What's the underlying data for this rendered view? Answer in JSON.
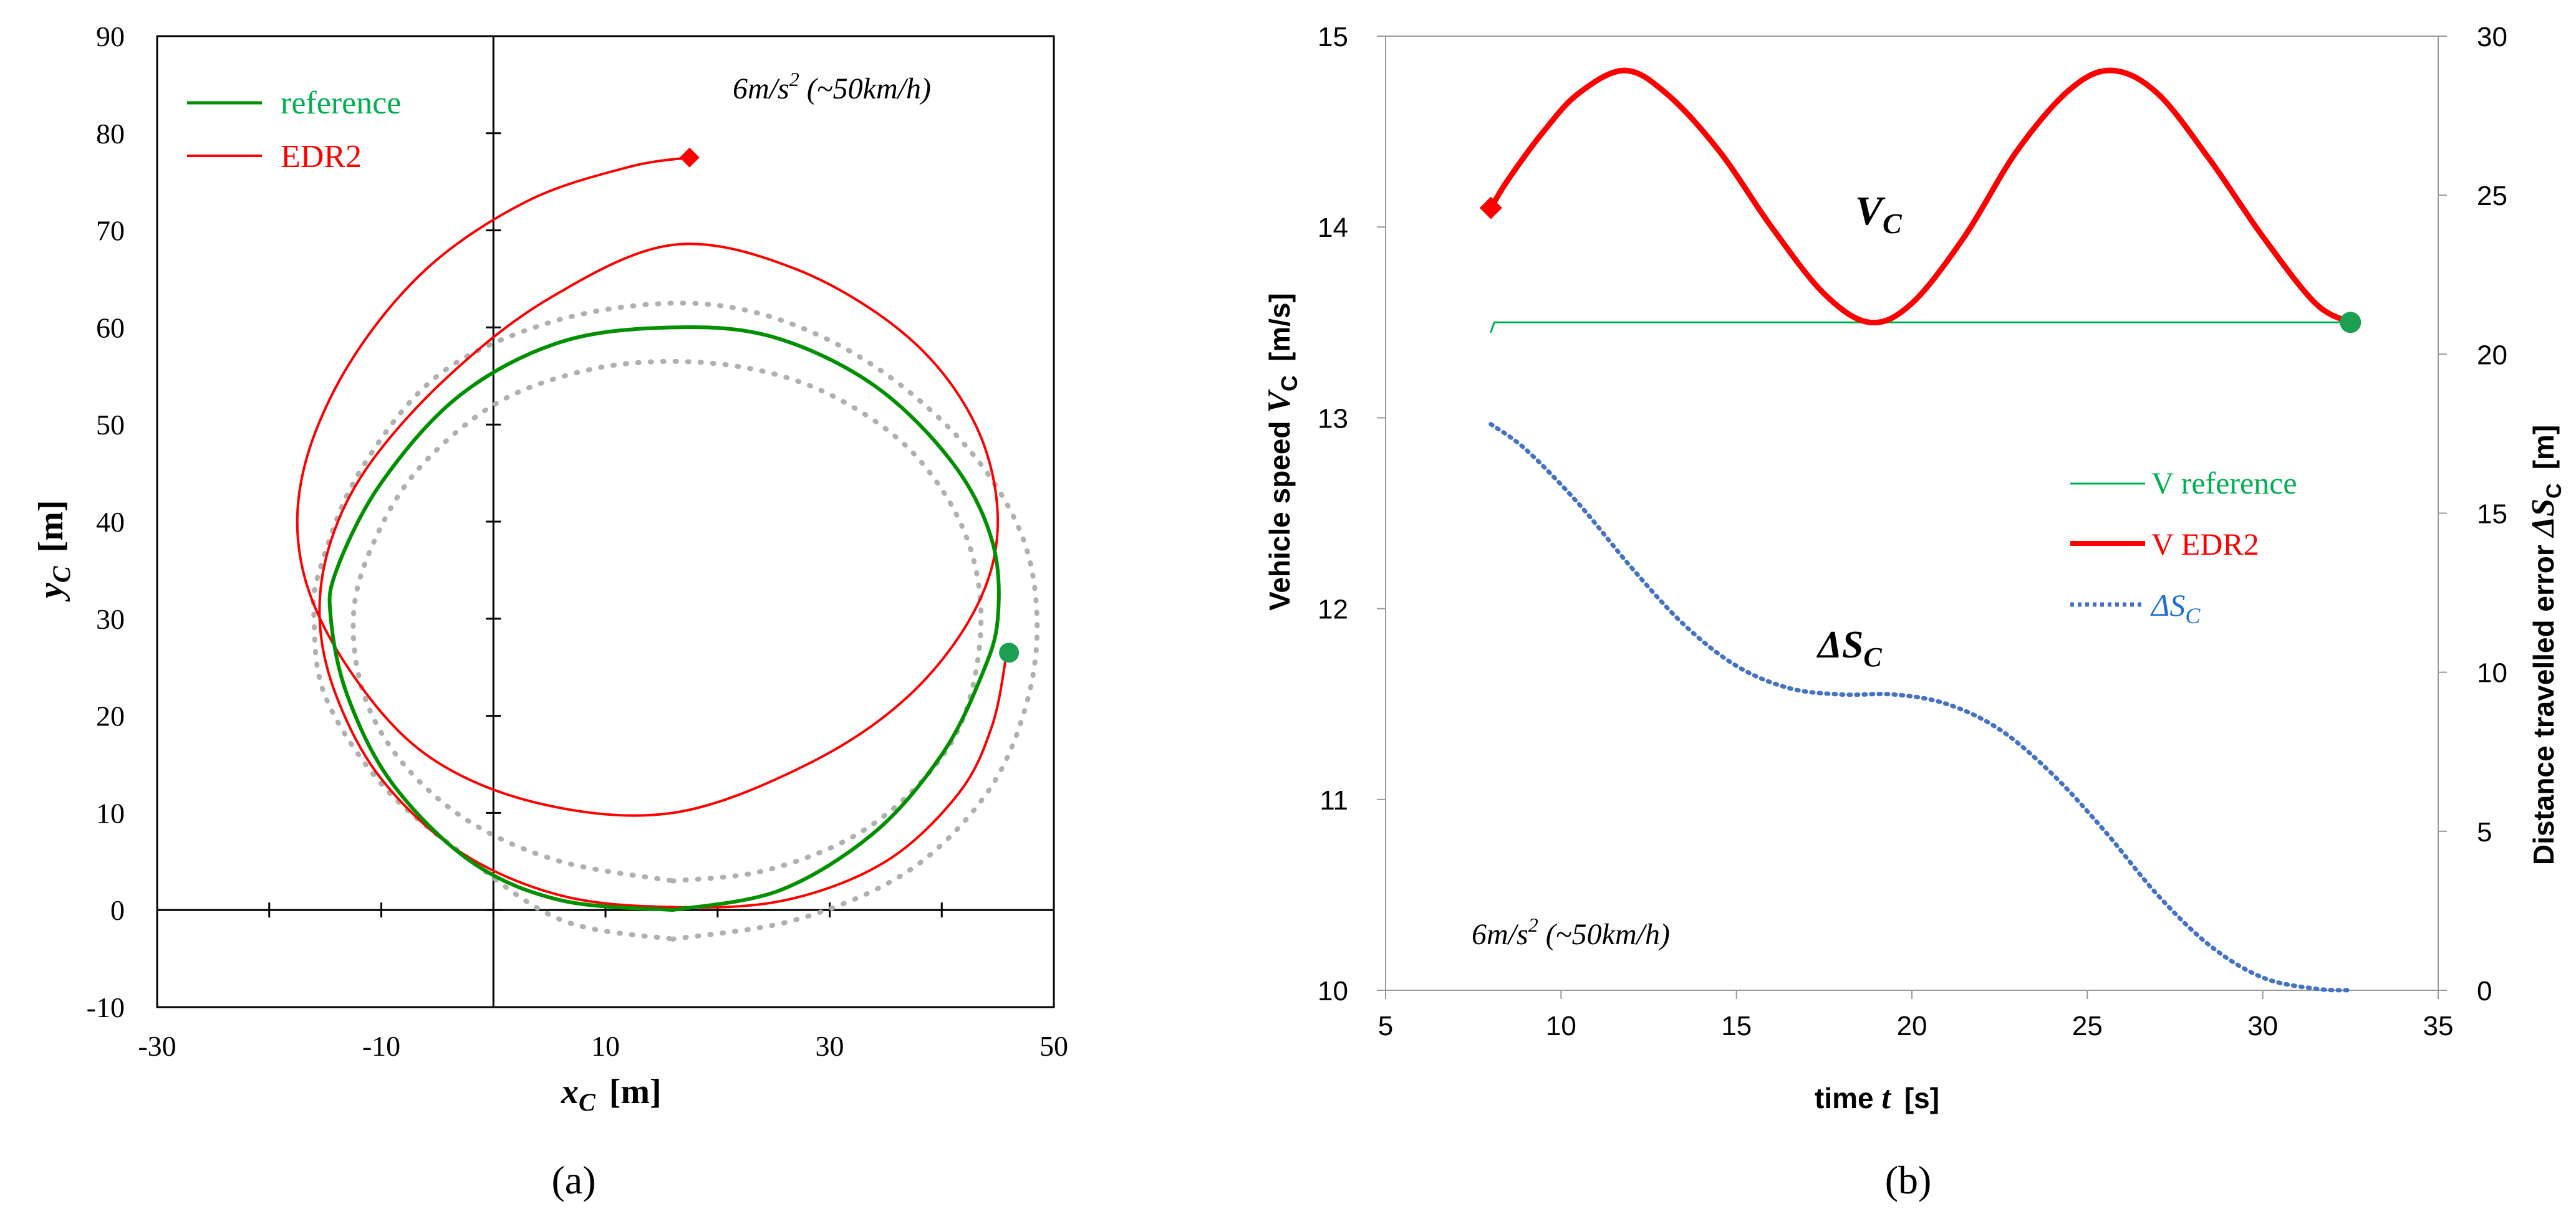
{
  "colors": {
    "reference": "#009000",
    "edr2": "#ff0000",
    "dotted_gray": "#b0b0b0",
    "v_reference": "#00b050",
    "delta_s": "#4472c4",
    "end_marker": "#1aa050",
    "legend_green_text": "#00b050",
    "legend_blue_text": "#1f6fd6"
  },
  "chart_data": [
    {
      "type": "scatter",
      "panel_label": "(a)",
      "xlabel_var": "x",
      "xlabel_sub": "C",
      "xlabel_unit": "[m]",
      "ylabel_var": "y",
      "ylabel_sub": "C",
      "ylabel_unit": "[m]",
      "xlim": [
        -30,
        50
      ],
      "ylim": [
        -10,
        90
      ],
      "x_ticks": [
        -30,
        -10,
        10,
        30,
        50
      ],
      "y_ticks": [
        -10,
        0,
        10,
        20,
        30,
        40,
        50,
        60,
        70,
        80,
        90
      ],
      "grid": false,
      "legend_position": "top-left",
      "annotation_main": "6m/s",
      "annotation_sup": "2",
      "annotation_rest": " (~50km/h)",
      "series": [
        {
          "name": "reference",
          "style": "solid",
          "points": [
            [
              16,
              0
            ],
            [
              25.5,
              2
            ],
            [
              34,
              8
            ],
            [
              40,
              16
            ],
            [
              43.5,
              24
            ],
            [
              45,
              30
            ],
            [
              44.5,
              38
            ],
            [
              41,
              46
            ],
            [
              34,
              54
            ],
            [
              25,
              59
            ],
            [
              16,
              60
            ],
            [
              6,
              58.5
            ],
            [
              -3,
              53
            ],
            [
              -10,
              44
            ],
            [
              -14,
              35
            ],
            [
              -14.5,
              30
            ],
            [
              -13,
              22
            ],
            [
              -9,
              13
            ],
            [
              -2,
              5
            ],
            [
              6,
              1
            ],
            [
              16,
              0
            ]
          ]
        },
        {
          "name": "EDR2",
          "style": "solid",
          "points": [
            [
              45.8,
              26.5
            ],
            [
              44.5,
              19
            ],
            [
              41.5,
              12
            ],
            [
              35,
              5
            ],
            [
              26,
              1
            ],
            [
              16,
              0.3
            ],
            [
              6,
              1.5
            ],
            [
              -3,
              6
            ],
            [
              -10,
              13.5
            ],
            [
              -14,
              22
            ],
            [
              -15.5,
              30
            ],
            [
              -14.5,
              38
            ],
            [
              -11,
              46
            ],
            [
              -4,
              55
            ],
            [
              5,
              63
            ],
            [
              16,
              68.5
            ],
            [
              27,
              66
            ],
            [
              37,
              59
            ],
            [
              43,
              50
            ],
            [
              45,
              40
            ],
            [
              43,
              31
            ],
            [
              37,
              22
            ],
            [
              28,
              15
            ],
            [
              16,
              10
            ],
            [
              4,
              11
            ],
            [
              -6,
              16
            ],
            [
              -13,
              25
            ],
            [
              -17,
              35
            ],
            [
              -17,
              45
            ],
            [
              -13,
              56
            ],
            [
              -6,
              66
            ],
            [
              3,
              73
            ],
            [
              12,
              76.5
            ],
            [
              17.5,
              77.5
            ]
          ]
        },
        {
          "name": "outer-bound",
          "style": "dotted",
          "points": [
            [
              16,
              -3
            ],
            [
              27,
              -1
            ],
            [
              37,
              4
            ],
            [
              44,
              12
            ],
            [
              47.5,
              21
            ],
            [
              48.5,
              30
            ],
            [
              47,
              39
            ],
            [
              42,
              48
            ],
            [
              34,
              56
            ],
            [
              25,
              61
            ],
            [
              16,
              62.5
            ],
            [
              5,
              60.5
            ],
            [
              -5,
              55
            ],
            [
              -12,
              45
            ],
            [
              -15.5,
              35
            ],
            [
              -16,
              30
            ],
            [
              -15,
              22
            ],
            [
              -10,
              13
            ],
            [
              -3,
              6
            ],
            [
              6,
              -1
            ],
            [
              16,
              -3
            ]
          ]
        },
        {
          "name": "inner-bound",
          "style": "dotted",
          "points": [
            [
              16,
              3
            ],
            [
              24,
              4
            ],
            [
              32,
              7.5
            ],
            [
              38,
              13
            ],
            [
              42,
              20
            ],
            [
              43.5,
              30
            ],
            [
              42,
              39
            ],
            [
              37.5,
              47
            ],
            [
              31,
              52.5
            ],
            [
              24,
              55.5
            ],
            [
              16,
              56.5
            ],
            [
              8,
              55.5
            ],
            [
              0,
              52
            ],
            [
              -7,
              45
            ],
            [
              -11,
              37
            ],
            [
              -12.5,
              30
            ],
            [
              -11.5,
              22
            ],
            [
              -8,
              15
            ],
            [
              -2,
              9
            ],
            [
              6,
              5
            ],
            [
              16,
              3
            ]
          ]
        }
      ],
      "markers": [
        {
          "name": "EDR2 end",
          "shape": "diamond",
          "x": 17.5,
          "y": 77.5
        },
        {
          "name": "start",
          "shape": "circle",
          "x": 46,
          "y": 26.5
        }
      ]
    },
    {
      "type": "line",
      "panel_label": "(b)",
      "xlabel_pre": "time ",
      "xlabel_var": "t",
      "xlabel_unit": "[s]",
      "ylabel_left_pre": "Vehicle speed ",
      "ylabel_left_var": "V",
      "ylabel_left_sub": "C",
      "ylabel_left_unit": "[m/s]",
      "ylabel_right_pre": "Distance travelled error ",
      "ylabel_right_var": "ΔS",
      "ylabel_right_sub": "C",
      "ylabel_right_unit": "[m]",
      "xlim": [
        5,
        35
      ],
      "ylim_left": [
        10,
        15
      ],
      "ylim_right": [
        0,
        30
      ],
      "x_ticks": [
        5,
        10,
        15,
        20,
        25,
        30,
        35
      ],
      "y_ticks_left": [
        10,
        11,
        12,
        13,
        14,
        15
      ],
      "y_ticks_right": [
        0,
        5,
        10,
        15,
        20,
        25,
        30
      ],
      "grid": false,
      "legend_position": "right",
      "annotation_main": "6m/s",
      "annotation_sup": "2",
      "annotation_rest": " (~50km/h)",
      "label_vc_var": "V",
      "label_vc_sub": "C",
      "label_ds_var": "ΔS",
      "label_ds_sub": "C",
      "series": [
        {
          "name": "V reference",
          "axis": "left",
          "style": "thin-solid",
          "points": [
            [
              8,
              13.45
            ],
            [
              8.1,
              13.5
            ],
            [
              32.5,
              13.5
            ]
          ]
        },
        {
          "name": "V EDR2",
          "axis": "left",
          "style": "thick-solid",
          "points": [
            [
              8,
              14.1
            ],
            [
              8.5,
              14.25
            ],
            [
              9.5,
              14.5
            ],
            [
              10.5,
              14.7
            ],
            [
              11.8,
              14.82
            ],
            [
              13,
              14.7
            ],
            [
              14.5,
              14.4
            ],
            [
              16,
              14.0
            ],
            [
              17.5,
              13.65
            ],
            [
              18.8,
              13.5
            ],
            [
              20,
              13.6
            ],
            [
              21.5,
              13.95
            ],
            [
              23,
              14.4
            ],
            [
              24.5,
              14.72
            ],
            [
              25.7,
              14.82
            ],
            [
              27,
              14.7
            ],
            [
              28.5,
              14.35
            ],
            [
              30,
              13.95
            ],
            [
              31.5,
              13.6
            ],
            [
              32.5,
              13.5
            ]
          ]
        },
        {
          "name": "ΔS_C",
          "legend_var": "ΔS",
          "legend_sub": "C",
          "axis": "right",
          "style": "dotted",
          "points": [
            [
              8,
              17.8
            ],
            [
              9,
              17.0
            ],
            [
              10.5,
              15.3
            ],
            [
              12,
              13.3
            ],
            [
              13.5,
              11.5
            ],
            [
              15,
              10.2
            ],
            [
              16.5,
              9.5
            ],
            [
              18,
              9.3
            ],
            [
              19.5,
              9.3
            ],
            [
              21,
              9.0
            ],
            [
              22.5,
              8.2
            ],
            [
              24,
              6.8
            ],
            [
              25.5,
              5.0
            ],
            [
              27,
              3.0
            ],
            [
              28.5,
              1.4
            ],
            [
              30,
              0.4
            ],
            [
              31.5,
              0.05
            ],
            [
              32.5,
              0
            ]
          ]
        }
      ],
      "markers": [
        {
          "name": "V EDR2 start",
          "shape": "diamond",
          "axis": "left",
          "x": 8,
          "y": 14.1
        },
        {
          "name": "end",
          "shape": "circle",
          "axis": "left",
          "x": 32.5,
          "y": 13.5
        }
      ]
    }
  ]
}
